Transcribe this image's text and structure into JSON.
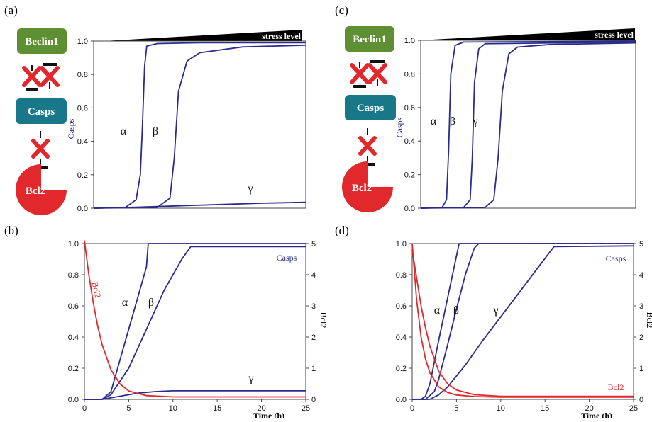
{
  "chart_data": [
    {
      "panel": "(a)",
      "type": "line",
      "ylabel": "Casps",
      "ylim": [
        0,
        1
      ],
      "xlim": [
        0,
        1
      ],
      "yticks": [
        "0.0",
        "0.2",
        "0.4",
        "0.6",
        "0.8",
        "1.0"
      ],
      "top_annotation": "stress level",
      "series": [
        {
          "name": "α",
          "x": [
            0,
            0.15,
            0.2,
            0.22,
            0.23,
            0.24,
            0.25,
            0.3,
            0.5,
            1.0
          ],
          "y": [
            0,
            0.005,
            0.05,
            0.2,
            0.5,
            0.85,
            0.97,
            0.985,
            0.99,
            0.99
          ]
        },
        {
          "name": "β",
          "x": [
            0,
            0.3,
            0.36,
            0.38,
            0.4,
            0.44,
            0.5,
            0.7,
            1.0
          ],
          "y": [
            0,
            0.005,
            0.06,
            0.3,
            0.7,
            0.88,
            0.93,
            0.965,
            0.975
          ]
        },
        {
          "name": "γ",
          "x": [
            0,
            0.2,
            0.4,
            0.6,
            0.8,
            1.0
          ],
          "y": [
            0,
            0.006,
            0.014,
            0.022,
            0.03,
            0.035
          ]
        }
      ]
    },
    {
      "panel": "(b)",
      "type": "line",
      "xlabel": "Time (h)",
      "ylabel_right": "Bcl2",
      "xlim": [
        0,
        25
      ],
      "ylim": [
        0,
        1
      ],
      "ylim_right": [
        0,
        5
      ],
      "xticks": [
        "0",
        "5",
        "10",
        "15",
        "20",
        "25"
      ],
      "yticks": [
        "0.0",
        "0.2",
        "0.4",
        "0.6",
        "0.8",
        "1.0"
      ],
      "yticks_right": [
        "0",
        "1",
        "2",
        "3",
        "4",
        "5"
      ],
      "annotations": [
        "Casps",
        "Bcl2"
      ],
      "series": [
        {
          "name": "α",
          "x": [
            0,
            2,
            3,
            4,
            5,
            6,
            7,
            7.2,
            25
          ],
          "y": [
            0,
            0,
            0.05,
            0.25,
            0.45,
            0.65,
            0.85,
            1.0,
            1.0
          ]
        },
        {
          "name": "β",
          "x": [
            0,
            2,
            3,
            5,
            7,
            9,
            10,
            11,
            12,
            25
          ],
          "y": [
            0,
            0,
            0.03,
            0.2,
            0.45,
            0.7,
            0.8,
            0.9,
            0.98,
            0.98
          ]
        },
        {
          "name": "γ",
          "x": [
            0,
            2,
            3,
            4,
            5,
            6,
            8,
            10,
            25
          ],
          "y": [
            0,
            0,
            0.01,
            0.02,
            0.03,
            0.04,
            0.05,
            0.055,
            0.055
          ]
        },
        {
          "name": "Bcl2",
          "axis": "right",
          "x": [
            0,
            0.5,
            1,
            1.5,
            2,
            3,
            4,
            5,
            7,
            10,
            25
          ],
          "y": [
            5.1,
            4.0,
            3.1,
            2.35,
            1.75,
            0.95,
            0.5,
            0.27,
            0.12,
            0.08,
            0.08
          ]
        }
      ]
    },
    {
      "panel": "(c)",
      "type": "line",
      "ylabel": "Casps",
      "ylim": [
        0,
        1
      ],
      "xlim": [
        0,
        1
      ],
      "yticks": [
        "0.0",
        "0.2",
        "0.4",
        "0.6",
        "0.8",
        "1.0"
      ],
      "top_annotation": "stress level",
      "series": [
        {
          "name": "α",
          "x": [
            0,
            0.1,
            0.12,
            0.13,
            0.14,
            0.16,
            0.2,
            1.0
          ],
          "y": [
            0,
            0.005,
            0.05,
            0.35,
            0.8,
            0.97,
            0.99,
            0.995
          ]
        },
        {
          "name": "β",
          "x": [
            0,
            0.2,
            0.23,
            0.24,
            0.25,
            0.27,
            0.3,
            1.0
          ],
          "y": [
            0,
            0.005,
            0.05,
            0.3,
            0.75,
            0.95,
            0.98,
            0.99
          ]
        },
        {
          "name": "γ",
          "x": [
            0,
            0.3,
            0.34,
            0.36,
            0.38,
            0.41,
            0.45,
            0.6,
            1.0
          ],
          "y": [
            0,
            0.005,
            0.05,
            0.3,
            0.7,
            0.92,
            0.96,
            0.975,
            0.985
          ]
        }
      ]
    },
    {
      "panel": "(d)",
      "type": "line",
      "xlabel": "Time (h)",
      "ylabel_right": "Bcl2",
      "xlim": [
        0,
        25
      ],
      "ylim": [
        0,
        1
      ],
      "ylim_right": [
        0,
        5
      ],
      "xticks": [
        "0",
        "5",
        "10",
        "15",
        "20",
        "25"
      ],
      "yticks": [
        "0.0",
        "0.2",
        "0.4",
        "0.6",
        "0.8",
        "1.0"
      ],
      "yticks_right": [
        "0",
        "1",
        "2",
        "3",
        "4",
        "5"
      ],
      "annotations": [
        "Casps",
        "Bcl2"
      ],
      "series": [
        {
          "name": "α",
          "x": [
            0,
            1,
            1.5,
            2,
            3,
            4,
            5,
            5.3,
            25
          ],
          "y": [
            0,
            0,
            0.02,
            0.1,
            0.38,
            0.65,
            0.92,
            1.0,
            1.0
          ]
        },
        {
          "name": "β",
          "x": [
            0,
            1.5,
            2.5,
            3,
            4,
            5,
            6,
            7,
            7.5,
            25
          ],
          "y": [
            0,
            0,
            0.05,
            0.13,
            0.35,
            0.58,
            0.8,
            0.97,
            1.0,
            1.0
          ]
        },
        {
          "name": "γ",
          "x": [
            0,
            2,
            3,
            4,
            6,
            8,
            10,
            12,
            14,
            16,
            25
          ],
          "y": [
            0,
            0,
            0.03,
            0.08,
            0.22,
            0.38,
            0.53,
            0.68,
            0.83,
            0.98,
            0.985
          ]
        },
        {
          "name": "Bcl2",
          "axis": "right",
          "x": [
            0,
            0.5,
            1,
            1.5,
            2,
            3,
            4,
            5,
            7,
            10,
            25
          ],
          "y": [
            5.0,
            3.2,
            2.0,
            1.3,
            0.85,
            0.4,
            0.22,
            0.14,
            0.09,
            0.07,
            0.07
          ]
        },
        {
          "name": "Bcl2",
          "axis": "right",
          "x": [
            0,
            0.5,
            1,
            1.5,
            2,
            3,
            4,
            5,
            7,
            10,
            25
          ],
          "y": [
            4.8,
            3.9,
            3.0,
            2.3,
            1.7,
            0.9,
            0.5,
            0.3,
            0.15,
            0.1,
            0.1
          ]
        }
      ]
    }
  ],
  "panels": {
    "a": {
      "label": "(a)"
    },
    "b": {
      "label": "(b)"
    },
    "c": {
      "label": "(c)"
    },
    "d": {
      "label": "(d)"
    }
  },
  "diagram": {
    "beclin_label": "Beclin1",
    "casps_label": "Casps",
    "bcl2_label": "Bcl2"
  },
  "colors": {
    "casps_curve": "#2b2b8f",
    "bcl2_curve": "#e0282d",
    "beclin_box": "#5f8f33",
    "casps_box": "#18788a",
    "bcl2_shape": "#e0282d",
    "x_mark": "#e0282d"
  }
}
